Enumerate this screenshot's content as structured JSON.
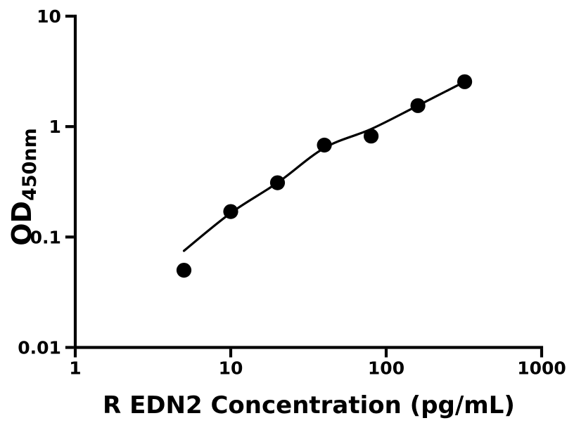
{
  "chart_data": {
    "type": "scatter",
    "title": "",
    "xlabel": "R EDN2 Concentration (pg/mL)",
    "ylabel": "OD",
    "ylabel_subscript": "450nm",
    "x_scale": "log",
    "y_scale": "log",
    "xlim": [
      1,
      1000
    ],
    "ylim": [
      0.01,
      10
    ],
    "x_ticks": [
      1,
      10,
      100,
      1000
    ],
    "x_tick_labels": [
      "1",
      "10",
      "100",
      "1000"
    ],
    "y_ticks": [
      0.01,
      0.1,
      1,
      10
    ],
    "y_tick_labels": [
      "0.01",
      "0.1",
      "1",
      "10"
    ],
    "grid": false,
    "legend": false,
    "colors": {
      "foreground": "#000000",
      "background": "#ffffff"
    },
    "series": [
      {
        "name": "fit-curve",
        "type": "line",
        "color": "#000000",
        "x": [
          5,
          10,
          20,
          40,
          80,
          160,
          320
        ],
        "y": [
          0.075,
          0.165,
          0.31,
          0.64,
          0.95,
          1.55,
          2.55
        ]
      },
      {
        "name": "standard-points",
        "type": "scatter",
        "marker": "circle",
        "color": "#000000",
        "x": [
          5,
          10,
          20,
          40,
          80,
          160,
          320
        ],
        "y": [
          0.05,
          0.17,
          0.31,
          0.68,
          0.82,
          1.55,
          2.55
        ]
      }
    ]
  }
}
